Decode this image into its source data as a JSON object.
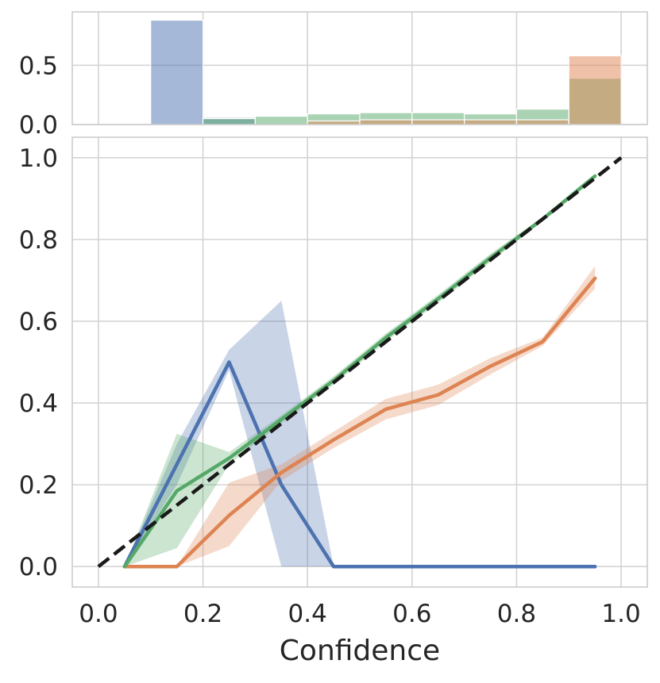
{
  "chart_data": [
    {
      "type": "bar",
      "panel": "histogram",
      "bin_edges": [
        0.0,
        0.1,
        0.2,
        0.3,
        0.4,
        0.5,
        0.6,
        0.7,
        0.8,
        0.9,
        1.0
      ],
      "ylim": [
        0,
        0.95
      ],
      "yticks": [
        "0.0",
        "0.5"
      ],
      "yticks_values": [
        0,
        0.5
      ],
      "grid": true,
      "series": [
        {
          "color": "#4c72b0",
          "values": [
            0,
            0.88,
            0.06,
            0.0,
            0.0,
            0.0,
            0.0,
            0.0,
            0.0,
            0.0
          ]
        },
        {
          "color": "#55a868",
          "values": [
            0,
            0,
            0.05,
            0.07,
            0.09,
            0.1,
            0.1,
            0.09,
            0.13,
            0.39
          ]
        },
        {
          "color": "#dd8452",
          "values": [
            0,
            0,
            0,
            0,
            0.03,
            0.04,
            0.04,
            0.04,
            0.04,
            0.58
          ]
        }
      ]
    },
    {
      "type": "line",
      "panel": "reliability",
      "xlabel": "Confidence",
      "xlim": [
        -0.05,
        1.05
      ],
      "ylim": [
        -0.05,
        1.05
      ],
      "xticks": [
        "0.0",
        "0.2",
        "0.4",
        "0.6",
        "0.8",
        "1.0"
      ],
      "xticks_values": [
        0,
        0.2,
        0.4,
        0.6,
        0.8,
        1.0
      ],
      "yticks": [
        "0.0",
        "0.2",
        "0.4",
        "0.6",
        "0.8",
        "1.0"
      ],
      "yticks_values": [
        0,
        0.2,
        0.4,
        0.6,
        0.8,
        1.0
      ],
      "grid": true,
      "diagonal": {
        "x": [
          0,
          1
        ],
        "y": [
          0,
          1
        ],
        "color": "#1a1a1a",
        "style": "dashed"
      },
      "series": [
        {
          "color": "#4c72b0",
          "x": [
            0.05,
            0.15,
            0.25,
            0.35,
            0.45,
            0.55,
            0.65,
            0.75,
            0.85,
            0.95
          ],
          "y": [
            0.0,
            0.25,
            0.5,
            0.2,
            0.0,
            0.0,
            0.0,
            0.0,
            0.0,
            0.0
          ],
          "lower": [
            0.0,
            0.2,
            0.48,
            0.0,
            0.0,
            0.0,
            0.0,
            0.0,
            0.0,
            0.0
          ],
          "upper": [
            0.0,
            0.3,
            0.53,
            0.65,
            0.0,
            0.0,
            0.0,
            0.0,
            0.0,
            0.0
          ]
        },
        {
          "color": "#dd8452",
          "x": [
            0.05,
            0.15,
            0.25,
            0.35,
            0.45,
            0.55,
            0.65,
            0.75,
            0.85,
            0.95
          ],
          "y": [
            0.0,
            0.0,
            0.125,
            0.23,
            0.31,
            0.385,
            0.42,
            0.49,
            0.55,
            0.705
          ],
          "lower": [
            0.0,
            0.0,
            0.05,
            0.21,
            0.29,
            0.36,
            0.395,
            0.47,
            0.54,
            0.68
          ],
          "upper": [
            0.0,
            0.0,
            0.205,
            0.25,
            0.33,
            0.41,
            0.445,
            0.51,
            0.56,
            0.735
          ]
        },
        {
          "color": "#55a868",
          "x": [
            0.05,
            0.15,
            0.25,
            0.35,
            0.45,
            0.55,
            0.65,
            0.75,
            0.85,
            0.95
          ],
          "y": [
            0.0,
            0.185,
            0.265,
            0.36,
            0.455,
            0.56,
            0.655,
            0.755,
            0.85,
            0.955
          ],
          "lower": [
            0.0,
            0.045,
            0.25,
            0.35,
            0.445,
            0.55,
            0.645,
            0.745,
            0.845,
            0.95
          ],
          "upper": [
            0.0,
            0.325,
            0.28,
            0.37,
            0.465,
            0.57,
            0.665,
            0.765,
            0.855,
            0.96
          ]
        }
      ]
    }
  ]
}
